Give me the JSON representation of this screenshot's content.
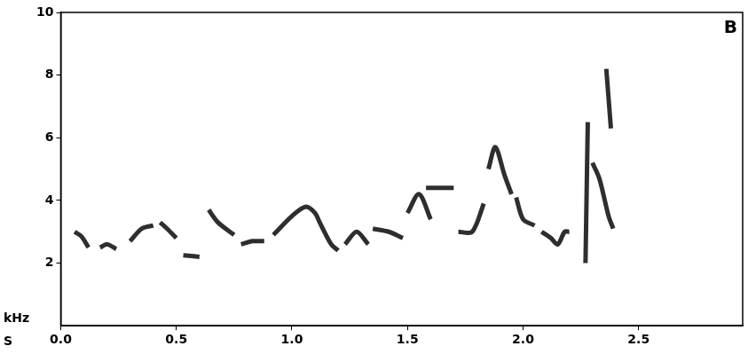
{
  "chart_data": {
    "type": "line",
    "annotations": [
      "B"
    ],
    "x_label": "S",
    "y_label": "kHz",
    "color": "#2e2e2e",
    "grid": false,
    "xlim": [
      0,
      2.95
    ],
    "ylim": [
      0,
      10
    ],
    "xticks": [
      {
        "value": 0,
        "label": "0.0"
      },
      0.5,
      {
        "value": 1,
        "label": "1.0"
      },
      1.5,
      {
        "value": 2,
        "label": "2.0"
      },
      2.5
    ],
    "yticks": [
      2,
      4,
      6,
      8,
      10
    ],
    "x": [
      0.06,
      0.09,
      0.12,
      0.14,
      0.17,
      0.2,
      0.24,
      0.26,
      0.3,
      0.35,
      0.4,
      0.42,
      0.43,
      0.46,
      0.5,
      0.51,
      0.53,
      0.6,
      0.62,
      0.64,
      0.68,
      0.75,
      0.76,
      0.78,
      0.83,
      0.88,
      0.9,
      0.92,
      1.0,
      1.06,
      1.1,
      1.12,
      1.17,
      1.2,
      1.21,
      1.23,
      1.28,
      1.33,
      1.34,
      1.35,
      1.42,
      1.48,
      1.49,
      1.5,
      1.55,
      1.6,
      1.61,
      1.58,
      1.7,
      1.71,
      1.72,
      1.78,
      1.83,
      1.84,
      1.85,
      1.88,
      1.92,
      1.95,
      1.96,
      1.97,
      2.0,
      2.05,
      2.06,
      2.08,
      2.12,
      2.15,
      2.18,
      2.2,
      2.22,
      2.27,
      2.28,
      2.285,
      2.3,
      2.33,
      2.37,
      2.39,
      2.4,
      2.36,
      2.38
    ],
    "values": [
      3.0,
      2.85,
      2.5,
      null,
      2.5,
      2.6,
      2.45,
      null,
      2.7,
      3.1,
      3.2,
      null,
      3.3,
      3.1,
      2.8,
      null,
      2.25,
      2.2,
      null,
      3.7,
      3.3,
      2.9,
      null,
      2.6,
      2.7,
      2.7,
      null,
      2.9,
      3.5,
      3.8,
      3.6,
      3.3,
      2.6,
      2.4,
      null,
      2.6,
      3.0,
      2.6,
      null,
      3.1,
      3.0,
      2.8,
      null,
      3.6,
      4.2,
      3.4,
      null,
      4.4,
      4.4,
      null,
      3.0,
      3.0,
      3.9,
      null,
      5.0,
      5.7,
      4.8,
      4.2,
      null,
      4.1,
      3.4,
      3.2,
      null,
      3.0,
      2.8,
      2.6,
      3.0,
      3.0,
      null,
      2.0,
      6.5,
      null,
      5.2,
      4.7,
      3.5,
      3.1,
      null,
      8.2,
      6.3
    ]
  }
}
